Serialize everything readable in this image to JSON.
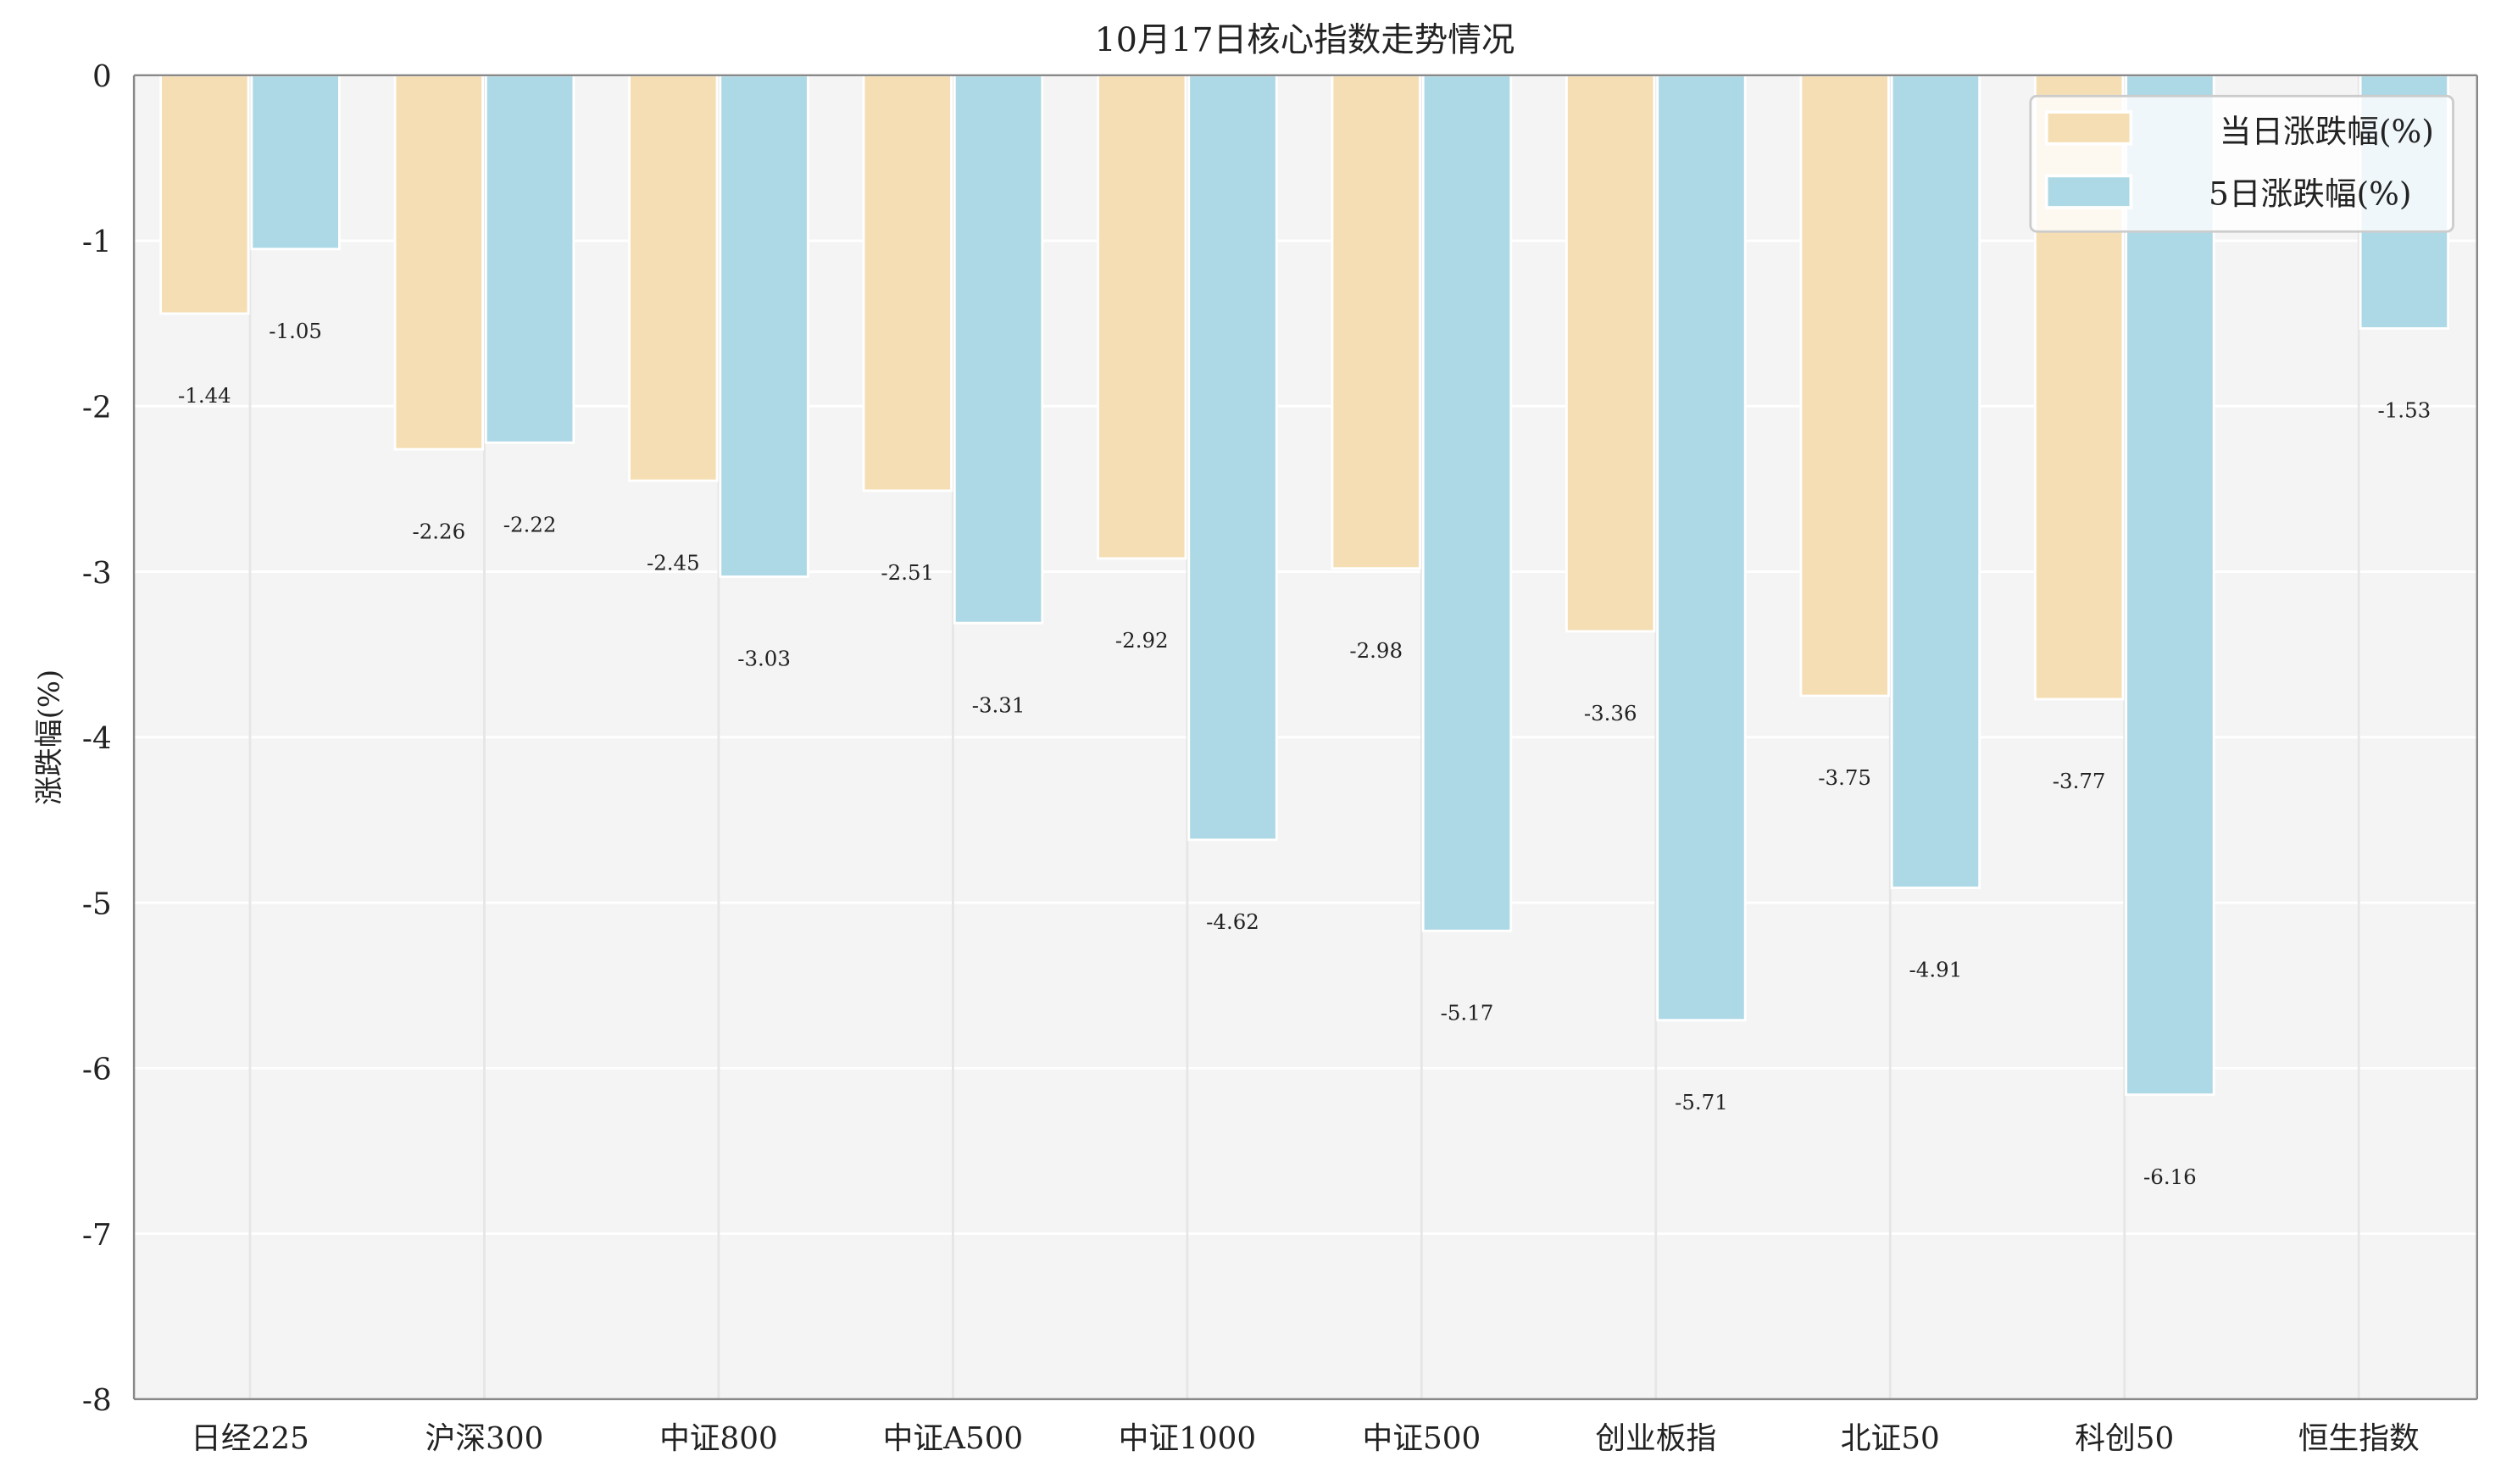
{
  "chart_data": {
    "type": "bar",
    "title": "10月17日核心指数走势情况",
    "xlabel": "",
    "ylabel": "涨跌幅(%)",
    "ylim": [
      -8,
      0
    ],
    "yticks": [
      "0",
      "-1",
      "-2",
      "-3",
      "-4",
      "-5",
      "-6",
      "-7",
      "-8"
    ],
    "grid": true,
    "legend_position": "top-right",
    "categories": [
      "日经225",
      "沪深300",
      "中证800",
      "中证A500",
      "中证1000",
      "中证500",
      "创业板指",
      "北证50",
      "科创50",
      "恒生指数"
    ],
    "series": [
      {
        "name": "当日涨跌幅(%)",
        "color": "#F5DEB3",
        "values": [
          -1.44,
          -2.26,
          -2.45,
          -2.51,
          -2.92,
          -2.98,
          -3.36,
          -3.75,
          -3.77,
          null
        ],
        "labels": [
          "-1.44",
          "-2.26",
          "-2.45",
          "-2.51",
          "-2.92",
          "-2.98",
          "-3.36",
          "-3.75",
          "-3.77",
          null
        ]
      },
      {
        "name": "5日涨跌幅(%)",
        "color": "#ADD8E6",
        "values": [
          -1.05,
          -2.22,
          -3.03,
          -3.31,
          -4.62,
          -5.17,
          -5.71,
          -4.91,
          -6.16,
          -1.53
        ],
        "labels": [
          "-1.05",
          "-2.22",
          "-3.03",
          "-3.31",
          "-4.62",
          "-5.17",
          "-5.71",
          "-4.91",
          "-6.16",
          "-1.53"
        ]
      }
    ],
    "background_color": "#F4F4F4"
  }
}
